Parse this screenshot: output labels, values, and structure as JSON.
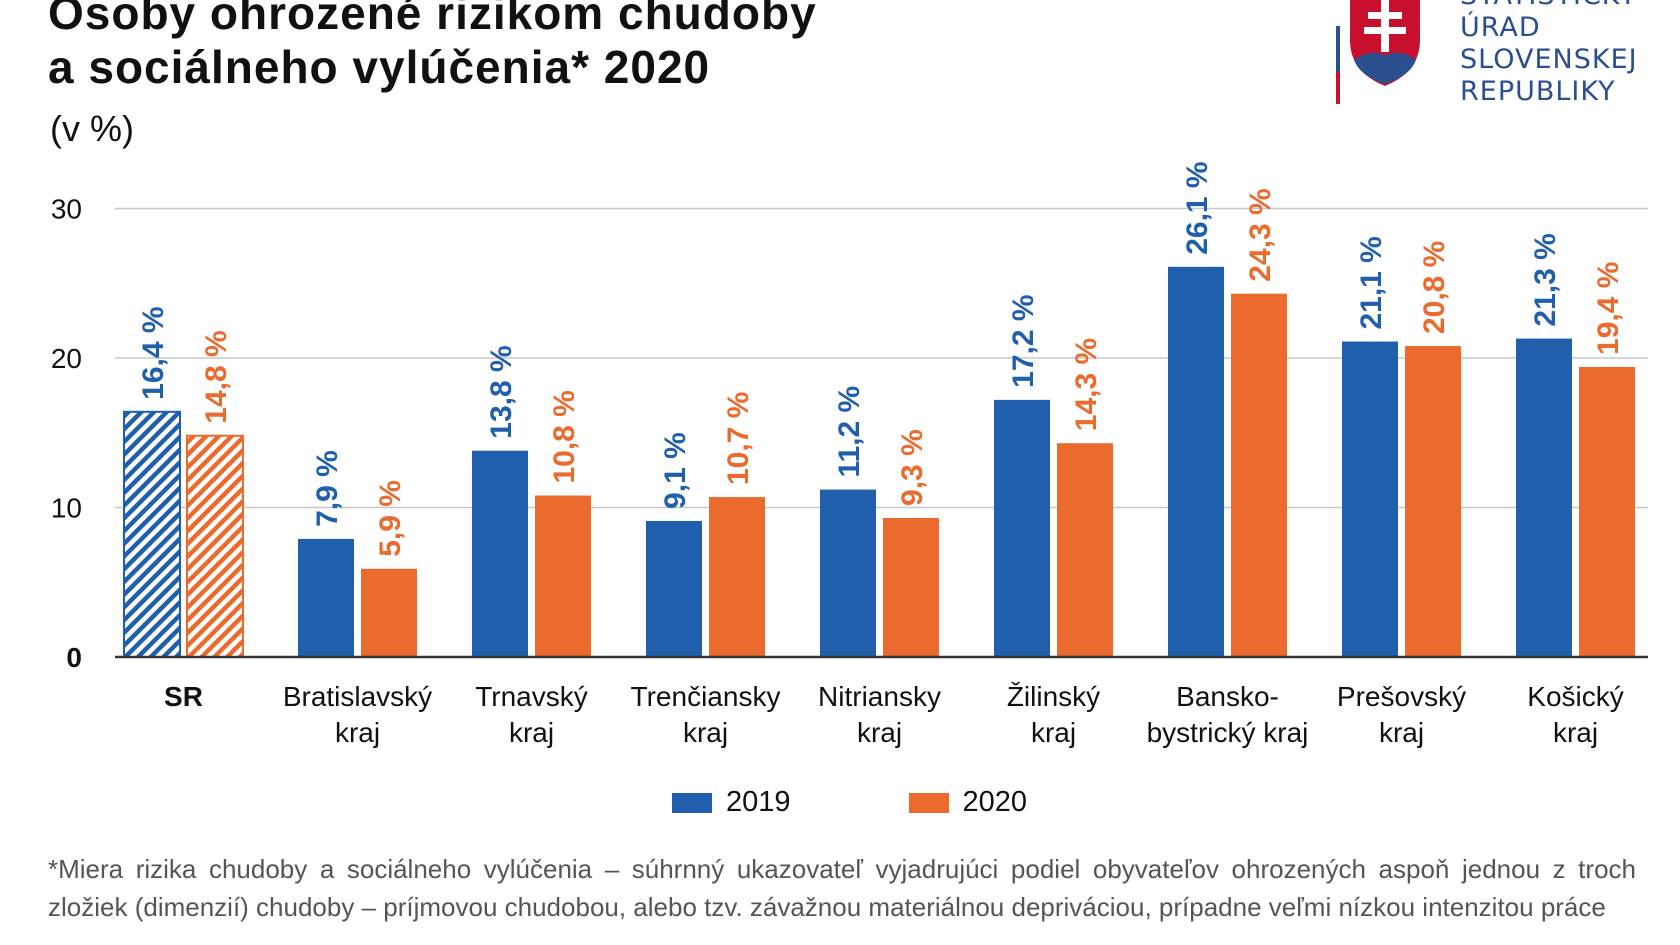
{
  "header": {
    "title_line1": "Osoby ohrozené rizikom chudoby",
    "title_line2": "a sociálneho vylúčenia* 2020",
    "unit": "(v %)"
  },
  "logo": {
    "line1": "ŠTATISTICKÝ",
    "line2": "ÚRAD",
    "line3": "SLOVENSKEJ",
    "line4": "REPUBLIKY"
  },
  "colors": {
    "series_2019": "#1f5fab",
    "series_2020": "#ea6b2d",
    "logo_blue": "#2a4f8f",
    "logo_red": "#c8102e"
  },
  "chart_data": {
    "type": "bar",
    "ylim": [
      0,
      30
    ],
    "yticks": [
      "0",
      "10",
      "20",
      "30"
    ],
    "grid": true,
    "legend_position": "bottom",
    "categories": [
      {
        "lines": [
          "SR"
        ],
        "bold": true,
        "hatched": true
      },
      {
        "lines": [
          "Bratislavský",
          "kraj"
        ]
      },
      {
        "lines": [
          "Trnavský",
          "kraj"
        ]
      },
      {
        "lines": [
          "Trenčiansky",
          "kraj"
        ]
      },
      {
        "lines": [
          "Nitriansky",
          "kraj"
        ]
      },
      {
        "lines": [
          "Žilinský",
          "kraj"
        ]
      },
      {
        "lines": [
          "Bansko-",
          "bystrický kraj"
        ]
      },
      {
        "lines": [
          "Prešovský",
          "kraj"
        ]
      },
      {
        "lines": [
          "Košický",
          "kraj"
        ]
      }
    ],
    "series": [
      {
        "name": "2019",
        "values": [
          16.4,
          7.9,
          13.8,
          9.1,
          11.2,
          17.2,
          26.1,
          21.1,
          21.3
        ],
        "labels": [
          "16,4 %",
          "7,9 %",
          "13,8 %",
          "9,1 %",
          "11,2 %",
          "17,2 %",
          "26,1 %",
          "21,1 %",
          "21,3 %"
        ]
      },
      {
        "name": "2020",
        "values": [
          14.8,
          5.9,
          10.8,
          10.7,
          9.3,
          14.3,
          24.3,
          20.8,
          19.4
        ],
        "labels": [
          "14,8 %",
          "5,9 %",
          "10,8 %",
          "10,7 %",
          "9,3 %",
          "14,3 %",
          "24,3 %",
          "20,8 %",
          "19,4 %"
        ]
      }
    ]
  },
  "footnote": "*Miera rizika chudoby a sociálneho vylúčenia – súhrnný ukazovateľ vyjadrujúci podiel obyvateľov ohrozených aspoň jednou z troch zložiek (dimenzií) chudoby – príjmovou chudobou, alebo tzv. závažnou materiálnou depriváciou, prípadne veľmi nízkou intenzitou práce"
}
